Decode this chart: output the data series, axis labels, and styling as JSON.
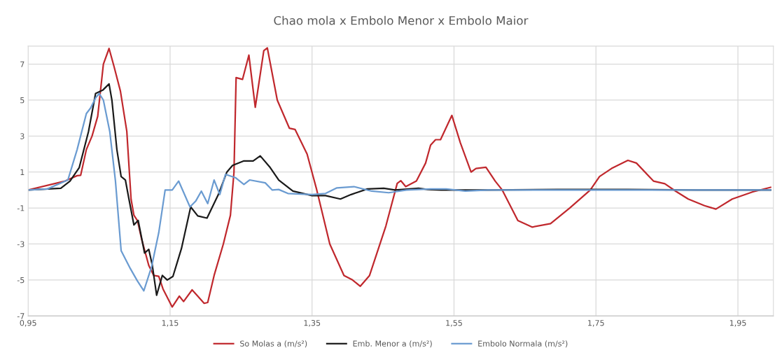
{
  "chart_data": {
    "type": "line",
    "title": "Chao mola x Embolo Menor x Embolo Maior",
    "xlim": [
      0.95,
      2.0
    ],
    "ylim": [
      -7,
      8
    ],
    "xticks": [
      {
        "value": 0.95,
        "label": "0,95"
      },
      {
        "value": 1.15,
        "label": "1,15"
      },
      {
        "value": 1.35,
        "label": "1,35"
      },
      {
        "value": 1.55,
        "label": "1,55"
      },
      {
        "value": 1.75,
        "label": "1,75"
      },
      {
        "value": 1.95,
        "label": "1,95"
      }
    ],
    "yticks": [
      -7,
      -5,
      -3,
      -1,
      1,
      3,
      5,
      7
    ],
    "grid": true,
    "legend": "bottom",
    "marker": "none",
    "line_style": "solid",
    "series": [
      {
        "name": "So Molas a (m/s²)",
        "color": "#c0282d",
        "x": [
          0.95,
          1.002,
          1.019,
          1.024,
          1.032,
          1.04,
          1.048,
          1.056,
          1.064,
          1.071,
          1.08,
          1.089,
          1.095,
          1.099,
          1.104,
          1.11,
          1.12,
          1.127,
          1.134,
          1.14,
          1.153,
          1.163,
          1.169,
          1.181,
          1.189,
          1.198,
          1.203,
          1.212,
          1.225,
          1.235,
          1.24,
          1.243,
          1.252,
          1.261,
          1.27,
          1.282,
          1.287,
          1.301,
          1.318,
          1.326,
          1.343,
          1.356,
          1.375,
          1.395,
          1.407,
          1.418,
          1.431,
          1.454,
          1.47,
          1.475,
          1.482,
          1.497,
          1.51,
          1.517,
          1.524,
          1.531,
          1.547,
          1.559,
          1.574,
          1.581,
          1.595,
          1.608,
          1.618,
          1.64,
          1.66,
          1.686,
          1.713,
          1.742,
          1.755,
          1.772,
          1.795,
          1.807,
          1.831,
          1.847,
          1.863,
          1.88,
          1.903,
          1.919,
          1.942,
          1.971,
          1.996
        ],
        "values": [
          0,
          0.5,
          0.8,
          0.82,
          2.25,
          3.0,
          4.1,
          7.0,
          7.87,
          6.87,
          5.5,
          3.26,
          -0.5,
          -1.4,
          -1.7,
          -2.75,
          -4.2,
          -4.75,
          -4.8,
          -5.5,
          -6.5,
          -5.9,
          -6.2,
          -5.55,
          -5.9,
          -6.3,
          -6.25,
          -4.75,
          -3.0,
          -1.4,
          1.0,
          6.25,
          6.15,
          7.5,
          4.6,
          7.75,
          7.9,
          5.0,
          3.44,
          3.37,
          2.0,
          0.1,
          -3.0,
          -4.75,
          -5.0,
          -5.35,
          -4.75,
          -2.0,
          0.37,
          0.52,
          0.19,
          0.5,
          1.5,
          2.5,
          2.8,
          2.8,
          4.15,
          2.62,
          1.0,
          1.2,
          1.27,
          0.5,
          0,
          -1.7,
          -2.06,
          -1.87,
          -1.0,
          0,
          0.75,
          1.2,
          1.65,
          1.5,
          0.5,
          0.35,
          -0.08,
          -0.5,
          -0.87,
          -1.06,
          -0.5,
          -0.1,
          0.15
        ]
      },
      {
        "name": "Emb. Menor a (m/s²)",
        "color": "#1a1a1a",
        "x": [
          0.95,
          0.996,
          1.009,
          1.022,
          1.035,
          1.045,
          1.055,
          1.064,
          1.068,
          1.075,
          1.081,
          1.087,
          1.092,
          1.099,
          1.105,
          1.114,
          1.12,
          1.125,
          1.131,
          1.139,
          1.146,
          1.154,
          1.166,
          1.179,
          1.189,
          1.202,
          1.218,
          1.23,
          1.238,
          1.254,
          1.267,
          1.277,
          1.291,
          1.303,
          1.323,
          1.35,
          1.369,
          1.39,
          1.405,
          1.428,
          1.451,
          1.467,
          1.5,
          1.513,
          1.532,
          1.598,
          1.696,
          1.794,
          1.893,
          1.996
        ],
        "values": [
          0,
          0.1,
          0.5,
          1.25,
          3.25,
          5.37,
          5.55,
          5.9,
          5.0,
          2.25,
          0.75,
          0.56,
          -0.5,
          -1.94,
          -1.69,
          -3.5,
          -3.3,
          -4.2,
          -5.85,
          -4.75,
          -5.0,
          -4.8,
          -3.25,
          -0.94,
          -1.44,
          -1.56,
          -0.25,
          1.0,
          1.37,
          1.62,
          1.62,
          1.9,
          1.25,
          0.56,
          -0.06,
          -0.31,
          -0.31,
          -0.5,
          -0.25,
          0.06,
          0.1,
          0,
          0.1,
          0.03,
          0,
          0,
          0.03,
          0.03,
          0,
          0
        ]
      },
      {
        "name": "Embolo Normala (m/s²)",
        "color": "#6a9bd1",
        "x": [
          0.95,
          0.977,
          1.006,
          1.019,
          1.032,
          1.038,
          1.045,
          1.05,
          1.056,
          1.065,
          1.073,
          1.081,
          1.094,
          1.104,
          1.113,
          1.124,
          1.134,
          1.143,
          1.153,
          1.162,
          1.178,
          1.186,
          1.194,
          1.203,
          1.212,
          1.22,
          1.228,
          1.242,
          1.254,
          1.262,
          1.284,
          1.294,
          1.303,
          1.316,
          1.35,
          1.369,
          1.385,
          1.409,
          1.434,
          1.458,
          1.483,
          1.517,
          1.539,
          1.566,
          1.598,
          1.696,
          1.794,
          1.893,
          1.996
        ],
        "values": [
          0,
          0.06,
          0.56,
          2.25,
          4.25,
          4.56,
          5.12,
          5.37,
          5.0,
          3.25,
          0.5,
          -3.37,
          -4.37,
          -5.06,
          -5.6,
          -4.25,
          -2.37,
          0,
          0,
          0.5,
          -0.94,
          -0.62,
          -0.06,
          -0.75,
          0.56,
          -0.25,
          0.87,
          0.69,
          0.31,
          0.56,
          0.4,
          0,
          0.03,
          -0.19,
          -0.25,
          -0.19,
          0.12,
          0.19,
          -0.06,
          -0.15,
          0,
          0.06,
          0.06,
          -0.06,
          0,
          0,
          0,
          0,
          0
        ]
      }
    ]
  }
}
